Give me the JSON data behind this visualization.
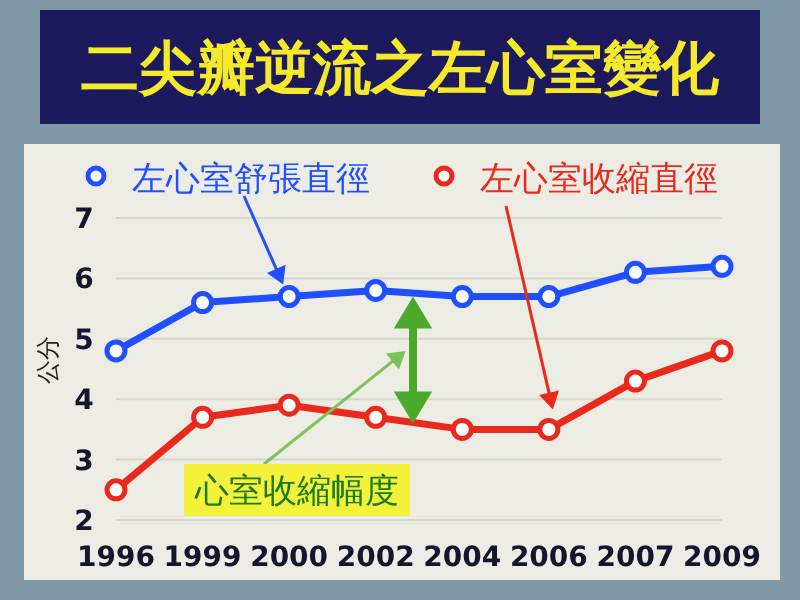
{
  "chart_data": {
    "type": "line",
    "title": "二尖瓣逆流之左心室變化",
    "ylabel": "公分",
    "categories": [
      "1996",
      "1999",
      "2000",
      "2002",
      "2004",
      "2006",
      "2007",
      "2009"
    ],
    "series": [
      {
        "name": "左心室舒張直徑",
        "color": "#1f4fff",
        "values": [
          4.8,
          5.6,
          5.7,
          5.8,
          5.7,
          5.7,
          6.1,
          6.2
        ]
      },
      {
        "name": "左心室收縮直徑",
        "color": "#e8291c",
        "values": [
          2.5,
          3.7,
          3.9,
          3.7,
          3.5,
          3.5,
          4.3,
          4.8
        ]
      }
    ],
    "ylim": [
      2,
      7
    ],
    "yticks": [
      2,
      3,
      4,
      5,
      6,
      7
    ],
    "grid": "y",
    "legend": "top",
    "marker": "circle",
    "line_style": "solid",
    "annotations": [
      "心室收縮幅度"
    ]
  }
}
